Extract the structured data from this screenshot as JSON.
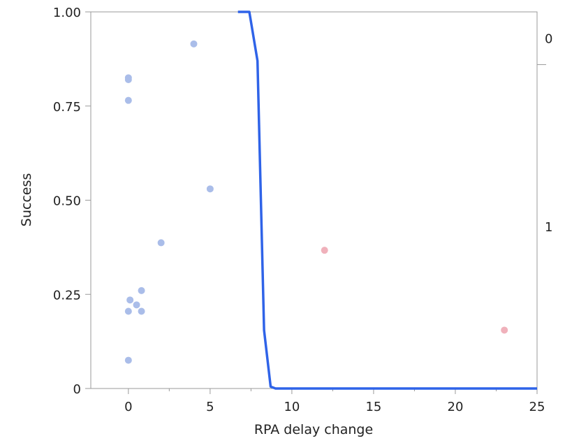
{
  "chart_data": {
    "type": "scatter",
    "title": "",
    "xlabel": "RPA delay change",
    "ylabel": "Success",
    "xlim": [
      -2.3,
      25
    ],
    "ylim": [
      0,
      1
    ],
    "x_ticks": [
      0,
      5,
      10,
      15,
      20,
      25
    ],
    "y_ticks": [
      0,
      0.25,
      0.5,
      0.75,
      1.0
    ],
    "y_tick_labels": [
      "0",
      "0.25",
      "0.50",
      "0.75",
      "1.00"
    ],
    "right_axis_labels": [
      {
        "label": "0",
        "y": 0.93
      },
      {
        "label": "1",
        "y": 0.43
      }
    ],
    "right_axis_divider": 0.86,
    "grid": false,
    "series": [
      {
        "color": "#aabde9",
        "points": [
          {
            "x": 0.0,
            "y": 0.825
          },
          {
            "x": 0.0,
            "y": 0.82
          },
          {
            "x": 0.0,
            "y": 0.765
          },
          {
            "x": 4.0,
            "y": 0.915
          },
          {
            "x": 5.0,
            "y": 0.53
          },
          {
            "x": 2.0,
            "y": 0.387
          },
          {
            "x": 0.8,
            "y": 0.26
          },
          {
            "x": 0.1,
            "y": 0.235
          },
          {
            "x": 0.5,
            "y": 0.222
          },
          {
            "x": 0.0,
            "y": 0.205
          },
          {
            "x": 0.8,
            "y": 0.205
          },
          {
            "x": 0.0,
            "y": 0.075
          }
        ]
      },
      {
        "color": "#f0b1bb",
        "points": [
          {
            "x": 12.0,
            "y": 0.367
          },
          {
            "x": 23.0,
            "y": 0.155
          }
        ]
      }
    ],
    "curve": {
      "color": "#2f63e8",
      "points": [
        {
          "x": 6.7,
          "y": 1.0
        },
        {
          "x": 7.4,
          "y": 1.0
        },
        {
          "x": 7.9,
          "y": 0.87
        },
        {
          "x": 8.3,
          "y": 0.155
        },
        {
          "x": 8.7,
          "y": 0.005
        },
        {
          "x": 9.0,
          "y": 0.0
        },
        {
          "x": 25.0,
          "y": 0.0
        }
      ]
    }
  }
}
